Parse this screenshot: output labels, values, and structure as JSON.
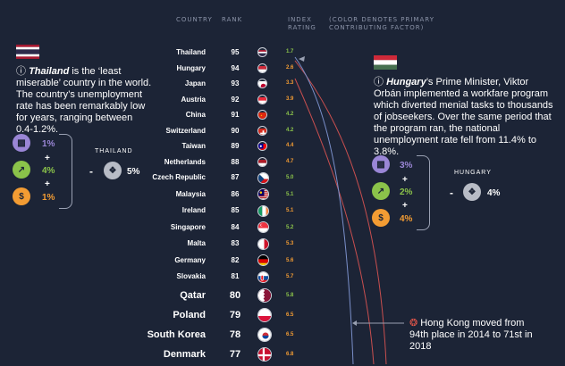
{
  "headers": {
    "country": "COUNTRY",
    "rank": "RANK",
    "index": "INDEX RATING",
    "note": "(COLOR DENOTES PRIMARY CONTRIBUTING FACTOR)"
  },
  "chart_data": {
    "type": "table",
    "rows": [
      {
        "country": "Thailand",
        "rank": 95,
        "rating": 1.7,
        "color": "#8bc34a",
        "flag": "thailand"
      },
      {
        "country": "Hungary",
        "rank": 94,
        "rating": 2.6,
        "color": "#f39c33",
        "flag": "hungary"
      },
      {
        "country": "Japan",
        "rank": 93,
        "rating": 3.3,
        "color": "#f39c33",
        "flag": "japan"
      },
      {
        "country": "Austria",
        "rank": 92,
        "rating": 3.9,
        "color": "#f39c33",
        "flag": "austria"
      },
      {
        "country": "China",
        "rank": 91,
        "rating": 4.2,
        "color": "#8bc34a",
        "flag": "china"
      },
      {
        "country": "Switzerland",
        "rank": 90,
        "rating": 4.2,
        "color": "#8bc34a",
        "flag": "switzerland"
      },
      {
        "country": "Taiwan",
        "rank": 89,
        "rating": 4.4,
        "color": "#f39c33",
        "flag": "taiwan"
      },
      {
        "country": "Netherlands",
        "rank": 88,
        "rating": 4.7,
        "color": "#f39c33",
        "flag": "netherlands"
      },
      {
        "country": "Czech Republic",
        "rank": 87,
        "rating": 5.0,
        "color": "#8bc34a",
        "flag": "czech"
      },
      {
        "country": "Malaysia",
        "rank": 86,
        "rating": 5.1,
        "color": "#8bc34a",
        "flag": "malaysia"
      },
      {
        "country": "Ireland",
        "rank": 85,
        "rating": 5.1,
        "color": "#f39c33",
        "flag": "ireland"
      },
      {
        "country": "Singapore",
        "rank": 84,
        "rating": 5.2,
        "color": "#8bc34a",
        "flag": "singapore"
      },
      {
        "country": "Malta",
        "rank": 83,
        "rating": 5.3,
        "color": "#f39c33",
        "flag": "malta"
      },
      {
        "country": "Germany",
        "rank": 82,
        "rating": 5.6,
        "color": "#f39c33",
        "flag": "germany"
      },
      {
        "country": "Slovakia",
        "rank": 81,
        "rating": 5.7,
        "color": "#f39c33",
        "flag": "slovakia"
      },
      {
        "country": "Qatar",
        "rank": 80,
        "rating": 5.8,
        "color": "#8bc34a",
        "flag": "qatar"
      },
      {
        "country": "Poland",
        "rank": 79,
        "rating": 6.5,
        "color": "#f39c33",
        "flag": "poland"
      },
      {
        "country": "South Korea",
        "rank": 78,
        "rating": 6.5,
        "color": "#f39c33",
        "flag": "korea"
      },
      {
        "country": "Denmark",
        "rank": 77,
        "rating": 6.8,
        "color": "#f39c33",
        "flag": "denmark"
      }
    ]
  },
  "thailand": {
    "text_bold": "Thailand",
    "text_rest": " is the ‘least miserable’ country in the world. The country’s unemployment rate has been remarkably low for years, ranging between 0.4-1.2%.",
    "label": "THAILAND",
    "factor1": "1%",
    "factor2": "4%",
    "factor3": "1%",
    "total": "5%",
    "plus": "+",
    "minus": "-"
  },
  "hungary": {
    "text_bold": "Hungary",
    "text_rest": "’s Prime Minister, Viktor Orbán implemented a workfare program which diverted menial tasks to thousands of jobseekers. Over the same period that the program ran, the national unemployment rate fell from 11.4% to 3.8%.",
    "label": "HUNGARY",
    "factor1": "3%",
    "factor2": "2%",
    "factor3": "4%",
    "total": "4%",
    "plus": "+",
    "minus": "-"
  },
  "hongkong": {
    "text": "Hong Kong moved from 94th place in 2014 to 71st in 2018"
  },
  "colors": {
    "purple": "#9a86d6",
    "green": "#8bc34a",
    "orange": "#f39c33",
    "grey": "#b8bcc6",
    "background": "#1c2436"
  }
}
